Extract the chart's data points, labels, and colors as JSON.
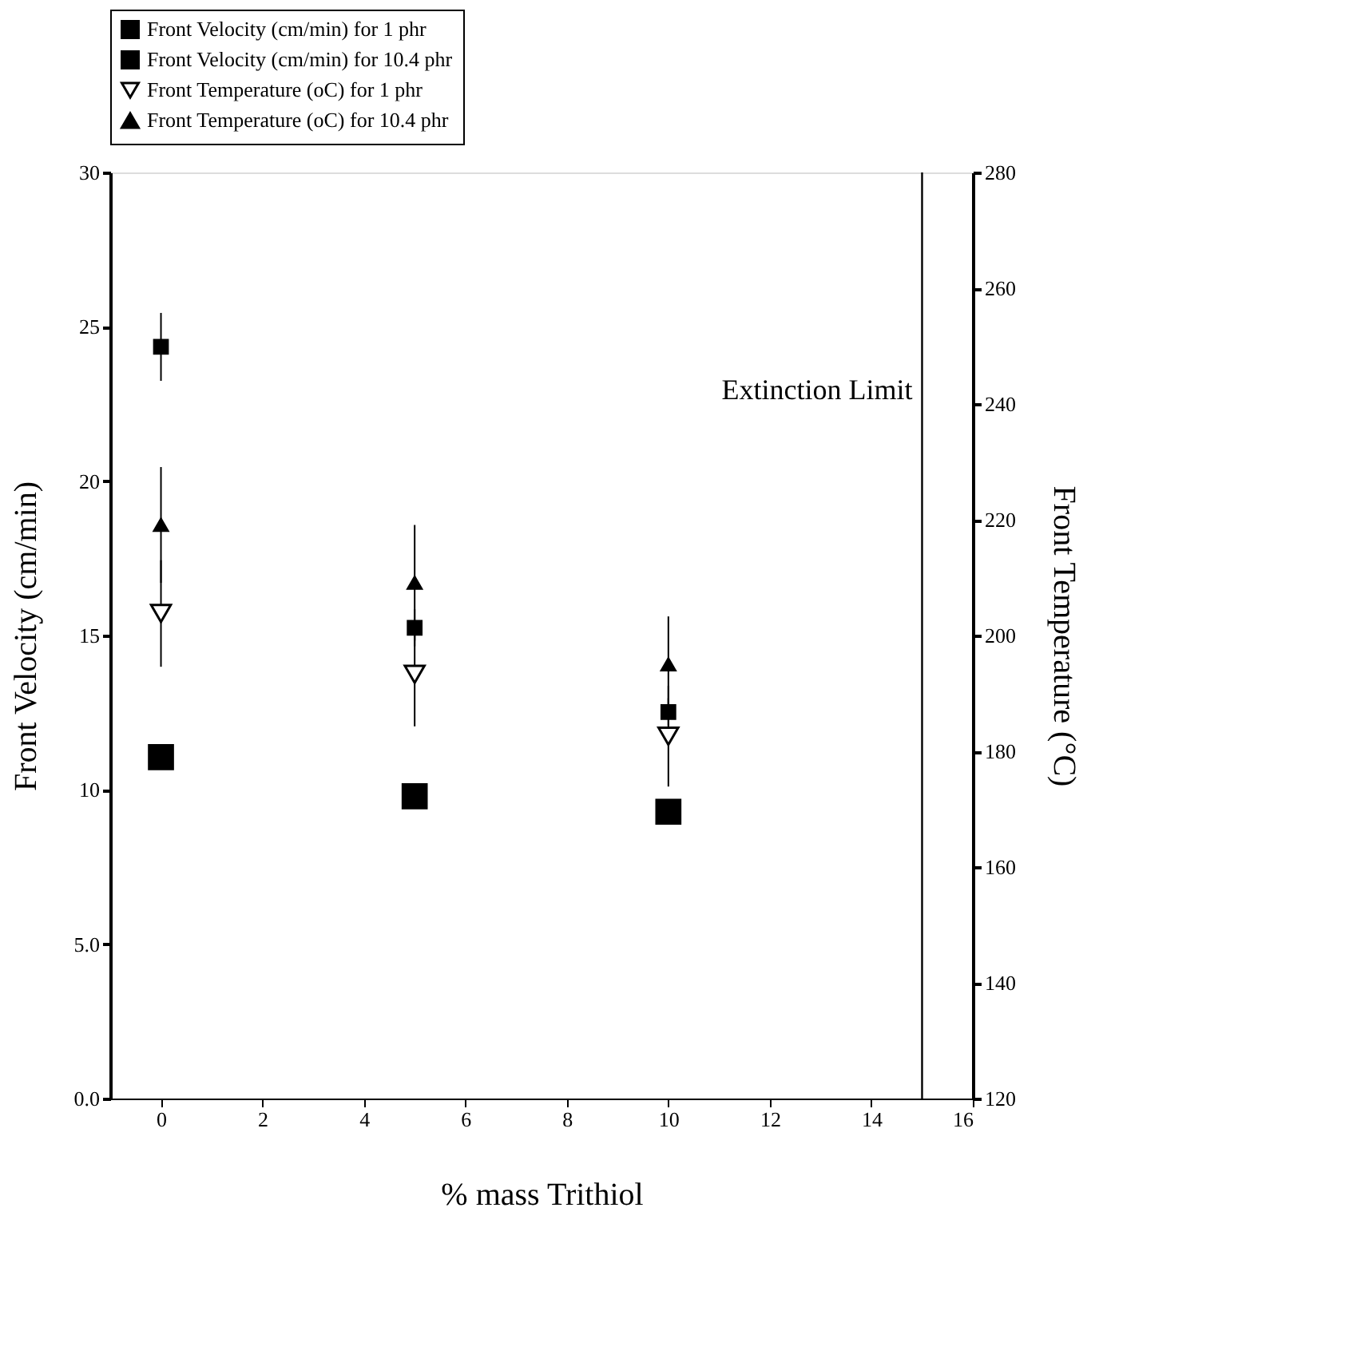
{
  "chart_data": {
    "type": "scatter",
    "xlabel": "% mass Trithiol",
    "ylabel": "Front Velocity (cm/min)",
    "y2label": "Front Temperature (°C)",
    "x": [
      0,
      5,
      10
    ],
    "xlim": [
      -1,
      16
    ],
    "xticks": [
      0,
      2,
      4,
      6,
      8,
      10,
      12,
      14,
      16
    ],
    "ylim": [
      0,
      30
    ],
    "yticks": [
      {
        "value": 0,
        "label": "0.0"
      },
      {
        "value": 5,
        "label": "5.0"
      },
      10,
      15,
      20,
      25,
      30
    ],
    "y2lim": [
      120,
      280
    ],
    "y2ticks": [
      120,
      140,
      160,
      180,
      200,
      220,
      240,
      260,
      280
    ],
    "grid": false,
    "legend": "top",
    "ref_lines": [
      {
        "axis": "x",
        "value": 15,
        "label": "Extinction Limit",
        "color": "#000000"
      }
    ],
    "series": [
      {
        "name": "Front Velocity (cm/min) for 1 phr",
        "color": "#000000",
        "marker": "square",
        "values": [
          11.06,
          9.79,
          9.29
        ]
      },
      {
        "name": "Front Velocity (cm/min) for 10.4 phr",
        "color": "#000000",
        "marker": "square",
        "values": [
          24.35,
          15.25,
          12.52
        ],
        "errors": [
          1.1,
          0.6,
          0.45
        ]
      },
      {
        "name": "Front Temperature (oC) for 1 phr",
        "color": "#000000",
        "marker": "triangle-down",
        "axis": "y2",
        "values": [
          203.8,
          193.3,
          182.6
        ],
        "errors": [
          9.2,
          9,
          8.7
        ]
      },
      {
        "name": "Front Temperature (oC) for 10.4 phr",
        "color": "#000000",
        "marker": "triangle",
        "axis": "y2",
        "values": [
          219.1,
          209.1,
          195.0
        ],
        "errors": [
          10,
          10,
          8.3
        ]
      }
    ]
  }
}
